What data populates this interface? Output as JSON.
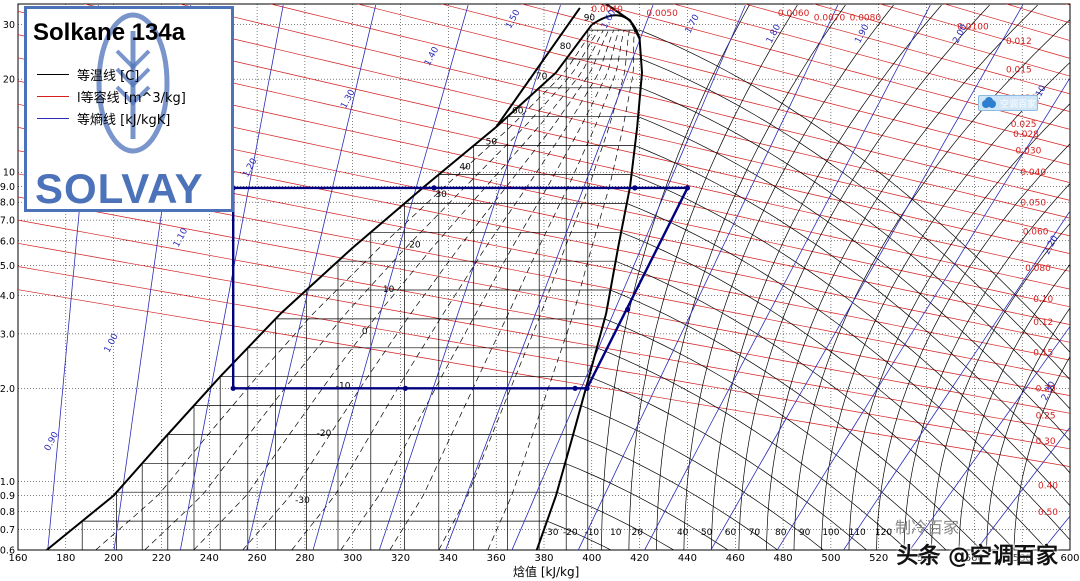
{
  "chart_data": {
    "type": "line",
    "title": "Solkane 134a",
    "brand": "SOLVAY",
    "xlabel": "焓值 [kJ/kg]",
    "ylabel": "",
    "y_scale": "log",
    "xlim": [
      160,
      600
    ],
    "ylim": [
      0.6,
      35
    ],
    "x_ticks": [
      160,
      180,
      200,
      220,
      240,
      260,
      280,
      300,
      320,
      340,
      360,
      380,
      400,
      420,
      440,
      460,
      480,
      500,
      520,
      540,
      560,
      580,
      600
    ],
    "y_ticks": [
      {
        "v": 0.6,
        "label": "0.6"
      },
      {
        "v": 0.7,
        "label": "0.7"
      },
      {
        "v": 0.8,
        "label": "0.8"
      },
      {
        "v": 0.9,
        "label": "0.9"
      },
      {
        "v": 1,
        "label": "1.0"
      },
      {
        "v": 2,
        "label": "2.0"
      },
      {
        "v": 3,
        "label": "3.0"
      },
      {
        "v": 4,
        "label": "4.0"
      },
      {
        "v": 5,
        "label": "5.0"
      },
      {
        "v": 6,
        "label": "6.0"
      },
      {
        "v": 7,
        "label": "7.0"
      },
      {
        "v": 8,
        "label": "8.0"
      },
      {
        "v": 9,
        "label": "9.0"
      },
      {
        "v": 10,
        "label": "10"
      },
      {
        "v": 20,
        "label": "20"
      },
      {
        "v": 30,
        "label": "30"
      }
    ],
    "grid": true,
    "legend": {
      "position": "top-left",
      "entries": [
        {
          "label": "等温线 [C]",
          "color": "#000000"
        },
        {
          "label": "l等容线 [m^3/kg]",
          "color": "#d62020"
        },
        {
          "label": "等熵线 [kJ/kgK]",
          "color": "#2b2bb8"
        }
      ]
    },
    "colors": {
      "isotherm": "#000000",
      "isochore": "#d62020",
      "isentrope": "#2b2bb8",
      "cycle": "#000080",
      "grid": "#000000",
      "brand": "#4c72b9"
    },
    "saturation_liquid": {
      "h": [
        172,
        200,
        222,
        245,
        270,
        300,
        330,
        360,
        385,
        400
      ],
      "p": [
        0.6,
        0.9,
        1.4,
        2.2,
        3.5,
        5.7,
        9.0,
        14,
        21,
        30
      ]
    },
    "saturation_vapor": {
      "h": [
        377,
        385,
        392,
        399,
        406,
        411,
        416,
        419,
        421,
        420,
        416,
        406
      ],
      "p": [
        0.6,
        0.9,
        1.4,
        2.2,
        3.5,
        5.7,
        9.0,
        14,
        21,
        27,
        31,
        35
      ]
    },
    "cycle": {
      "h": [
        250,
        250,
        398,
        440,
        250
      ],
      "p": [
        8.9,
        2.0,
        2.0,
        8.9,
        8.9
      ],
      "markers": [
        {
          "h": 250,
          "p": 2.0
        },
        {
          "h": 322,
          "p": 2.0
        },
        {
          "h": 393,
          "p": 2.0
        },
        {
          "h": 398,
          "p": 2.0
        },
        {
          "h": 250,
          "p": 8.9
        },
        {
          "h": 334,
          "p": 8.9
        },
        {
          "h": 418,
          "p": 8.9
        },
        {
          "h": 440,
          "p": 8.9
        },
        {
          "h": 415,
          "p": 3.6
        }
      ]
    },
    "isotherm_labels": [
      {
        "text": "90",
        "h": 399,
        "p": 31
      },
      {
        "text": "80",
        "h": 389,
        "p": 25
      },
      {
        "text": "70",
        "h": 379,
        "p": 20
      },
      {
        "text": "60",
        "h": 369,
        "p": 15.5
      },
      {
        "text": "50",
        "h": 358,
        "p": 12.3
      },
      {
        "text": "40",
        "h": 347,
        "p": 10.2
      },
      {
        "text": "30",
        "h": 337,
        "p": 8.3
      },
      {
        "text": "20",
        "h": 326,
        "p": 5.7
      },
      {
        "text": "10",
        "h": 315,
        "p": 4.1
      },
      {
        "text": "0",
        "h": 305,
        "p": 3.0
      },
      {
        "text": "-10",
        "h": 296,
        "p": 2.0
      },
      {
        "text": "-20",
        "h": 288,
        "p": 1.4
      },
      {
        "text": "-30",
        "h": 279,
        "p": 0.85
      },
      {
        "text": "-30",
        "h": 383,
        "p": 0.67
      },
      {
        "text": "-20",
        "h": 391,
        "p": 0.67
      },
      {
        "text": "-10",
        "h": 400,
        "p": 0.67
      },
      {
        "text": "10",
        "h": 410,
        "p": 0.67
      },
      {
        "text": "20",
        "h": 419,
        "p": 0.67
      },
      {
        "text": "40",
        "h": 438,
        "p": 0.67
      },
      {
        "text": "50",
        "h": 448,
        "p": 0.67
      },
      {
        "text": "60",
        "h": 458,
        "p": 0.67
      },
      {
        "text": "70",
        "h": 468,
        "p": 0.67
      },
      {
        "text": "80",
        "h": 479,
        "p": 0.67
      },
      {
        "text": "90",
        "h": 489,
        "p": 0.67
      },
      {
        "text": "100",
        "h": 500,
        "p": 0.67
      },
      {
        "text": "110",
        "h": 511,
        "p": 0.67
      },
      {
        "text": "120",
        "h": 522,
        "p": 0.67
      }
    ],
    "isochore_labels": [
      {
        "text": "0.0040",
        "h": 413,
        "p": 33
      },
      {
        "text": "0.0050",
        "h": 436,
        "p": 32
      },
      {
        "text": "0.0060",
        "h": 491,
        "p": 32
      },
      {
        "text": "0.0070",
        "h": 506,
        "p": 31
      },
      {
        "text": "0.0080",
        "h": 521,
        "p": 31
      },
      {
        "text": "0.0100",
        "h": 566,
        "p": 29
      },
      {
        "text": "0.012",
        "h": 584,
        "p": 26
      },
      {
        "text": "0.015",
        "h": 584,
        "p": 21
      },
      {
        "text": "0.020",
        "h": 586,
        "p": 17
      },
      {
        "text": "0.025",
        "h": 586,
        "p": 14
      },
      {
        "text": "0.028",
        "h": 587,
        "p": 13
      },
      {
        "text": "0.030",
        "h": 588,
        "p": 11.5
      },
      {
        "text": "0.040",
        "h": 590,
        "p": 9.8
      },
      {
        "text": "0.050",
        "h": 590,
        "p": 7.8
      },
      {
        "text": "0.060",
        "h": 591,
        "p": 6.3
      },
      {
        "text": "0.080",
        "h": 592,
        "p": 4.8
      },
      {
        "text": "0.10",
        "h": 593,
        "p": 3.8
      },
      {
        "text": "0.12",
        "h": 593,
        "p": 3.2
      },
      {
        "text": "0.15",
        "h": 593,
        "p": 2.55
      },
      {
        "text": "0.20",
        "h": 594,
        "p": 1.95
      },
      {
        "text": "0.25",
        "h": 594,
        "p": 1.6
      },
      {
        "text": "0.30",
        "h": 594,
        "p": 1.32
      },
      {
        "text": "0.40",
        "h": 595,
        "p": 0.95
      },
      {
        "text": "0.50",
        "h": 595,
        "p": 0.78
      }
    ],
    "isentrope_labels": [
      {
        "text": "0.90",
        "h": 173,
        "p": 1.25
      },
      {
        "text": "1.00",
        "h": 198,
        "p": 2.6
      },
      {
        "text": "1.10",
        "h": 227,
        "p": 5.7
      },
      {
        "text": "1.20",
        "h": 256,
        "p": 9.6
      },
      {
        "text": "1.30",
        "h": 297,
        "p": 16
      },
      {
        "text": "1.40",
        "h": 332,
        "p": 22
      },
      {
        "text": "1.50",
        "h": 366,
        "p": 29
      },
      {
        "text": "1.60",
        "h": 406,
        "p": 29
      },
      {
        "text": "1.70",
        "h": 441,
        "p": 28
      },
      {
        "text": "1.80",
        "h": 475,
        "p": 26
      },
      {
        "text": "1.90",
        "h": 512,
        "p": 26
      },
      {
        "text": "2.00",
        "h": 553,
        "p": 26
      },
      {
        "text": "2.10",
        "h": 586,
        "p": 16.5
      },
      {
        "text": "2.20",
        "h": 591,
        "p": 5.4
      },
      {
        "text": "2.30",
        "h": 590,
        "p": 1.82
      }
    ]
  },
  "watermark": "头条 @空调百家",
  "watermark_small": "制冷百家",
  "badge_text": "空调百家"
}
